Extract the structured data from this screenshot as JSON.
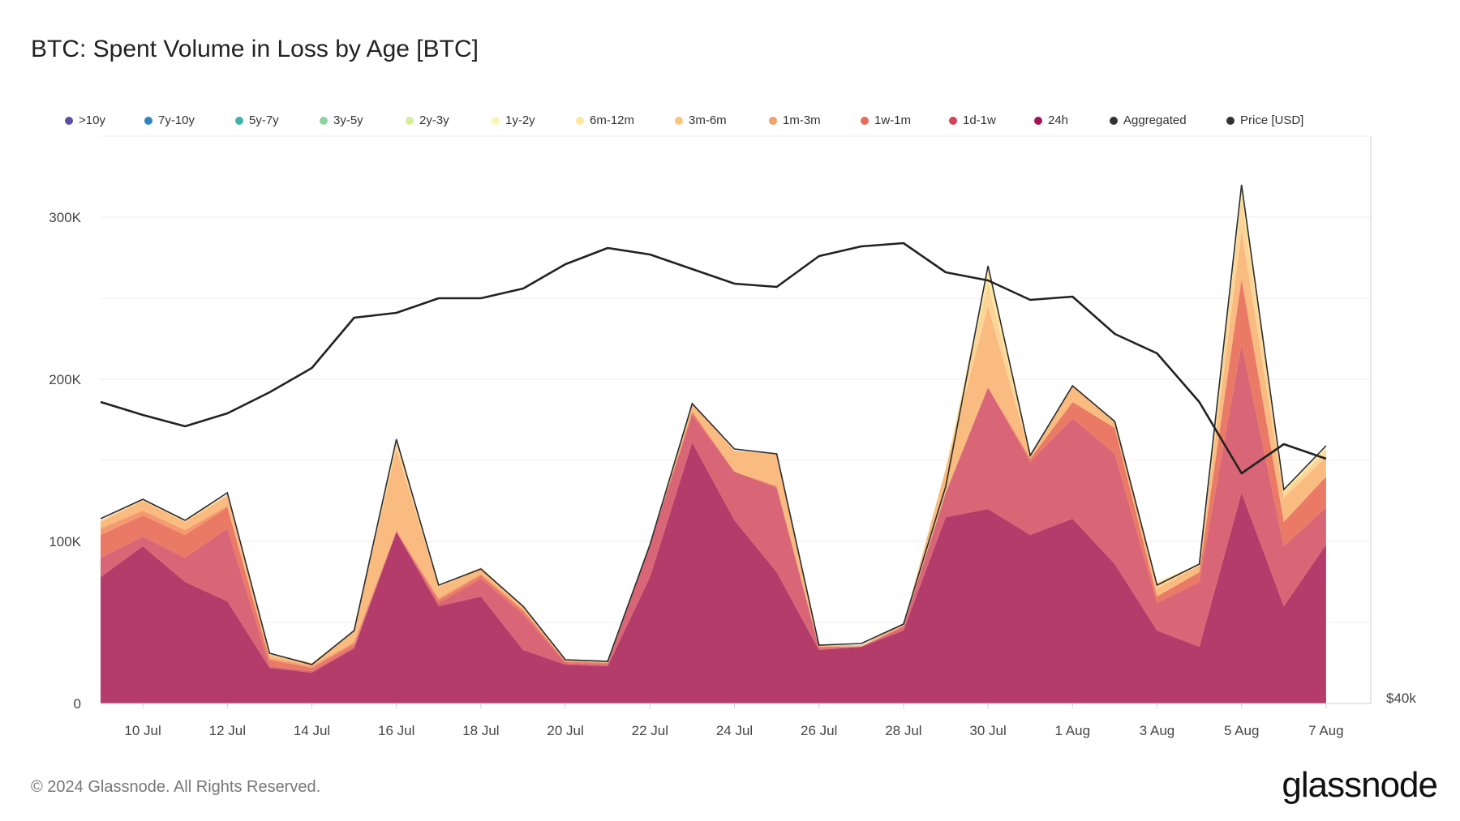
{
  "title": "BTC: Spent Volume in Loss by Age [BTC]",
  "footer": "© 2024 Glassnode. All Rights Reserved.",
  "brand": "glassnode",
  "legend": [
    {
      "label": ">10y",
      "color": "#5b4ea8"
    },
    {
      "label": "7y-10y",
      "color": "#2e86c1"
    },
    {
      "label": "5y-7y",
      "color": "#3fb3ab"
    },
    {
      "label": "3y-5y",
      "color": "#8fd3a0"
    },
    {
      "label": "2y-3y",
      "color": "#d3ef9c"
    },
    {
      "label": "1y-2y",
      "color": "#f5f7b0"
    },
    {
      "label": "6m-12m",
      "color": "#fde89a"
    },
    {
      "label": "3m-6m",
      "color": "#f9c77a"
    },
    {
      "label": "1m-3m",
      "color": "#f4a06a"
    },
    {
      "label": "1w-1m",
      "color": "#ea6a58"
    },
    {
      "label": "1d-1w",
      "color": "#d6405a"
    },
    {
      "label": "24h",
      "color": "#a3135a"
    },
    {
      "label": "Aggregated",
      "color": "#333333"
    },
    {
      "label": "Price [USD]",
      "color": "#333333"
    }
  ],
  "chart_data": {
    "type": "area",
    "stacked": true,
    "x": [
      "9 Jul",
      "10 Jul",
      "11 Jul",
      "12 Jul",
      "13 Jul",
      "14 Jul",
      "15 Jul",
      "16 Jul",
      "17 Jul",
      "18 Jul",
      "19 Jul",
      "20 Jul",
      "21 Jul",
      "22 Jul",
      "23 Jul",
      "24 Jul",
      "25 Jul",
      "26 Jul",
      "27 Jul",
      "28 Jul",
      "29 Jul",
      "30 Jul",
      "31 Jul",
      "1 Aug",
      "2 Aug",
      "3 Aug",
      "4 Aug",
      "5 Aug",
      "6 Aug",
      "7 Aug"
    ],
    "x_tick_labels": [
      "10 Jul",
      "12 Jul",
      "14 Jul",
      "16 Jul",
      "18 Jul",
      "20 Jul",
      "22 Jul",
      "24 Jul",
      "26 Jul",
      "28 Jul",
      "30 Jul",
      "1 Aug",
      "3 Aug",
      "5 Aug",
      "7 Aug"
    ],
    "y_ticks": [
      "0",
      "100K",
      "200K",
      "300K"
    ],
    "y_tick_values": [
      0,
      100000,
      200000,
      300000
    ],
    "ylim": [
      0,
      350000
    ],
    "y2_tick_label": "$40k",
    "grid": true,
    "legend_position": "top",
    "series": [
      {
        "name": "24h",
        "color": "#b43c6a",
        "values": [
          78000,
          97000,
          75000,
          63000,
          22000,
          19000,
          34000,
          106000,
          60000,
          66000,
          33000,
          24000,
          23000,
          78000,
          161000,
          113000,
          81000,
          33000,
          35000,
          45000,
          115000,
          120000,
          104000,
          114000,
          86000,
          45000,
          35000,
          130000,
          60000,
          98000
        ]
      },
      {
        "name": "1d-1w",
        "color": "#d96676",
        "values": [
          12000,
          6000,
          15000,
          45000,
          1000,
          1000,
          1000,
          0,
          2000,
          11000,
          22000,
          1000,
          1000,
          20000,
          17000,
          30000,
          52000,
          1000,
          0,
          2000,
          15000,
          75000,
          45000,
          62000,
          68000,
          17000,
          40000,
          92000,
          37000,
          23000
        ]
      },
      {
        "name": "1w-1m",
        "color": "#ea7a66",
        "values": [
          14000,
          13000,
          14000,
          13000,
          4000,
          2000,
          2000,
          0,
          2000,
          2000,
          2000,
          1000,
          1000,
          0,
          2000,
          0,
          1000,
          1000,
          0,
          1000,
          0,
          0,
          2000,
          10000,
          16000,
          4000,
          6000,
          40000,
          15000,
          19000
        ]
      },
      {
        "name": "1m-3m",
        "color": "#f49a6e",
        "values": [
          4000,
          3000,
          3000,
          1000,
          1000,
          1000,
          1000,
          1000,
          1000,
          1000,
          1000,
          0,
          0,
          0,
          0,
          0,
          0,
          0,
          0,
          0,
          0,
          0,
          0,
          0,
          0,
          0,
          0,
          0,
          0,
          0
        ]
      },
      {
        "name": "3m-6m",
        "color": "#f9bb80",
        "values": [
          4000,
          6000,
          5000,
          6000,
          2000,
          1000,
          7000,
          50000,
          7000,
          3000,
          2000,
          1000,
          1000,
          0,
          5000,
          13000,
          20000,
          1000,
          1000,
          1000,
          15000,
          50000,
          2000,
          10000,
          4000,
          5000,
          4000,
          30000,
          15000,
          12000
        ]
      },
      {
        "name": "6m-12m",
        "color": "#fcd497",
        "values": [
          1000,
          1000,
          1000,
          1000,
          1000,
          1000,
          0,
          4000,
          1000,
          1000,
          0,
          0,
          0,
          0,
          0,
          0,
          0,
          0,
          0,
          0,
          0,
          15000,
          0,
          0,
          0,
          3000,
          1000,
          20000,
          3000,
          4000
        ]
      },
      {
        "name": "1y-2y",
        "color": "#fbe8a2",
        "values": [
          0,
          0,
          0,
          0,
          0,
          0,
          0,
          2000,
          0,
          0,
          0,
          0,
          0,
          0,
          0,
          0,
          0,
          0,
          0,
          0,
          0,
          8000,
          0,
          0,
          0,
          1000,
          0,
          6000,
          2000,
          2000
        ]
      }
    ],
    "aggregated": [
      114000,
      126000,
      113000,
      130000,
      31000,
      24000,
      45000,
      163000,
      73000,
      83000,
      60000,
      27000,
      26000,
      98000,
      185000,
      157000,
      154000,
      36000,
      37000,
      49000,
      134000,
      270000,
      153000,
      196000,
      174000,
      73000,
      86000,
      320000,
      132000,
      159000
    ],
    "price_usd": [
      58600,
      57800,
      57100,
      57900,
      59200,
      60700,
      63800,
      64100,
      65000,
      65000,
      65600,
      67100,
      68100,
      67700,
      66800,
      65900,
      65700,
      67600,
      68200,
      68400,
      66600,
      66100,
      64900,
      65100,
      62800,
      61600,
      58600,
      54200,
      56000,
      55100
    ],
    "price_axis": {
      "min": 40000,
      "max": 75000
    }
  }
}
